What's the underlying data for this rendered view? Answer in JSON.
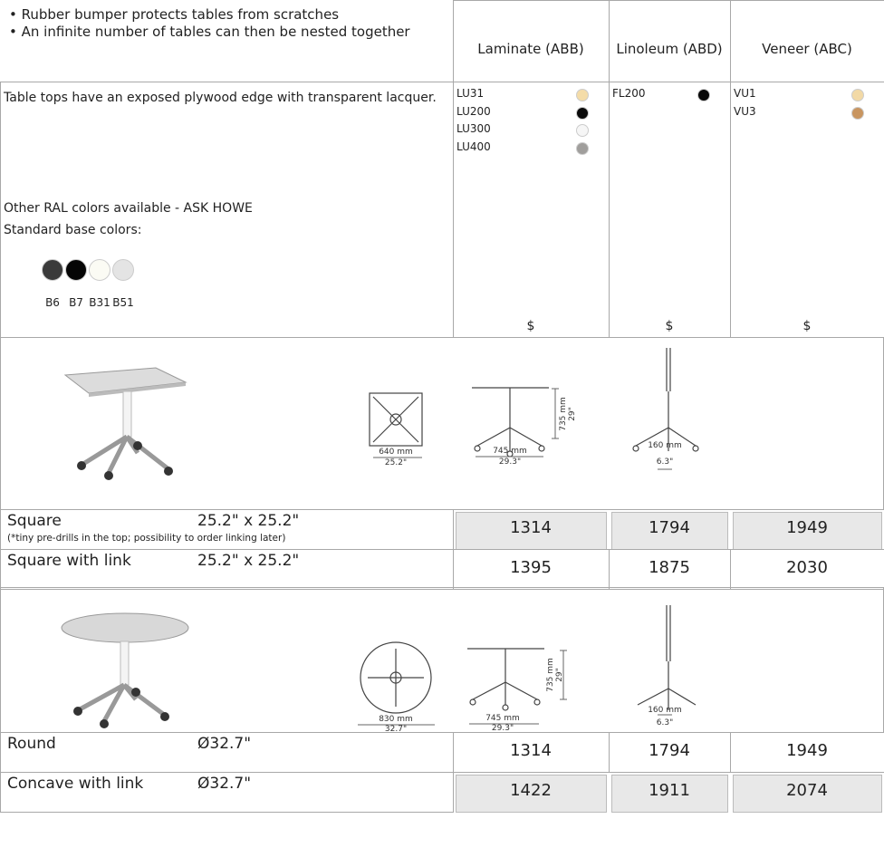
{
  "header": {
    "bullets": [
      "Rubber bumper protects tables from scratches",
      "An infinite number of tables can then be nested together"
    ],
    "columns": [
      "Laminate (ABB)",
      "Linoleum (ABD)",
      "Veneer (ABC)"
    ]
  },
  "materials": {
    "description": "Table tops have an exposed plywood edge with transparent lacquer.",
    "other_colors": "Other RAL colors available - ASK HOWE",
    "base_colors_label": "Standard base colors:",
    "base_colors": [
      {
        "code": "B6",
        "color": "#3a3a3a"
      },
      {
        "code": "B7",
        "color": "#050505"
      },
      {
        "code": "B31",
        "color": "#fbfbf4"
      },
      {
        "code": "B51",
        "color": "#e4e4e4"
      }
    ],
    "finishes": [
      [
        {
          "code": "LU31",
          "color": "#f4dca8"
        },
        {
          "code": "LU200",
          "color": "#0a0a0a"
        },
        {
          "code": "LU300",
          "color": "#f6f6f6"
        },
        {
          "code": "LU400",
          "color": "#a09e9c"
        }
      ],
      [
        {
          "code": "FL200",
          "color": "#080808"
        }
      ],
      [
        {
          "code": "VU1",
          "color": "#f2d9a6"
        },
        {
          "code": "VU3",
          "color": "#c89560"
        }
      ]
    ],
    "price_symbol": [
      "$",
      "$",
      "$"
    ]
  },
  "sections": [
    {
      "dimensions": {
        "top": "640 mm",
        "top_in": "25.2\"",
        "width": "745 mm",
        "width_in": "29.3\"",
        "height": "735 mm",
        "height_in": "29\"",
        "folded": "160 mm",
        "folded_in": "6.3\""
      },
      "products": [
        {
          "name": "Square",
          "size": "25.2\" x 25.2\"",
          "note": "(*tiny pre-drills in the top; possibility to order linking later)",
          "prices": [
            1314,
            1794,
            1949
          ],
          "shaded": true
        },
        {
          "name": "Square with link",
          "size": "25.2\" x 25.2\"",
          "prices": [
            1395,
            1875,
            2030
          ],
          "shaded": false
        }
      ]
    },
    {
      "dimensions": {
        "top": "830 mm",
        "top_in": "32.7\"",
        "width": "745 mm",
        "width_in": "29.3\"",
        "height": "735 mm",
        "height_in": "29\"",
        "folded": "160 mm",
        "folded_in": "6.3\""
      },
      "products": [
        {
          "name": "Round",
          "size": "Ø32.7\"",
          "prices": [
            1314,
            1794,
            1949
          ],
          "shaded": false
        },
        {
          "name": "Concave with link",
          "size": "Ø32.7\"",
          "prices": [
            1422,
            1911,
            2074
          ],
          "shaded": true
        }
      ]
    }
  ]
}
